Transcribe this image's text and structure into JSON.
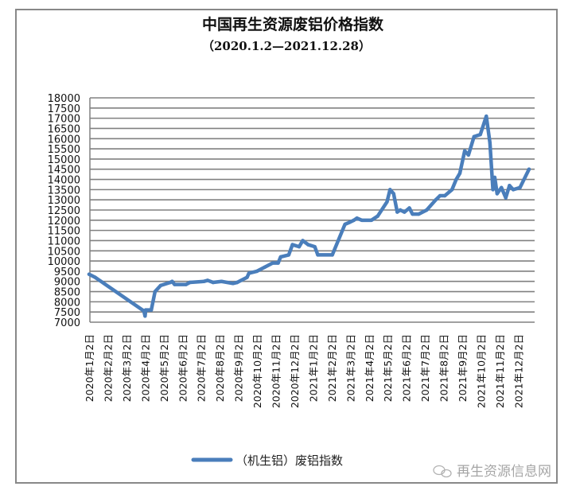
{
  "chart_data": {
    "type": "line",
    "title": "中国再生资源废铝价格指数",
    "subtitle": "（2020.1.2—2021.12.28）",
    "xlabel": "",
    "ylabel": "",
    "ylim": [
      7000,
      18000
    ],
    "y_ticks": [
      7000,
      7500,
      8000,
      8500,
      9000,
      9500,
      10000,
      10500,
      11000,
      11500,
      12000,
      12500,
      13000,
      13500,
      14000,
      14500,
      15000,
      15500,
      16000,
      16500,
      17000,
      17500,
      18000
    ],
    "x_tick_labels": [
      "2020年1月2日",
      "2020年2月2日",
      "2020年3月2日",
      "2020年4月2日",
      "2020年5月2日",
      "2020年6月2日",
      "2020年7月2日",
      "2020年8月2日",
      "2020年9月2日",
      "2020年10月2日",
      "2020年11月2日",
      "2020年12月2日",
      "2021年1月2日",
      "2021年2月2日",
      "2021年3月2日",
      "2021年4月2日",
      "2021年5月2日",
      "2021年6月2日",
      "2021年7月2日",
      "2021年8月2日",
      "2021年9月2日",
      "2021年10月2日",
      "2021年11月2日",
      "2021年12月2日"
    ],
    "grid": true,
    "legend_position": "bottom",
    "series": [
      {
        "name": "（机生铝）废铝指数",
        "color": "#4a7ebb",
        "points": [
          [
            "2020-01-02",
            9350
          ],
          [
            "2020-01-12",
            9200
          ],
          [
            "2020-03-31",
            7550
          ],
          [
            "2020-04-02",
            7300
          ],
          [
            "2020-04-03",
            7600
          ],
          [
            "2020-04-12",
            7600
          ],
          [
            "2020-04-18",
            8500
          ],
          [
            "2020-04-27",
            8800
          ],
          [
            "2020-05-13",
            8950
          ],
          [
            "2020-05-16",
            9000
          ],
          [
            "2020-05-20",
            8850
          ],
          [
            "2020-06-08",
            8850
          ],
          [
            "2020-06-14",
            8950
          ],
          [
            "2020-07-07",
            9000
          ],
          [
            "2020-07-13",
            9050
          ],
          [
            "2020-07-22",
            8950
          ],
          [
            "2020-08-05",
            9000
          ],
          [
            "2020-08-24",
            8900
          ],
          [
            "2020-08-31",
            8950
          ],
          [
            "2020-09-16",
            9200
          ],
          [
            "2020-09-19",
            9400
          ],
          [
            "2020-10-02",
            9500
          ],
          [
            "2020-10-15",
            9700
          ],
          [
            "2020-10-28",
            9900
          ],
          [
            "2020-11-06",
            9900
          ],
          [
            "2020-11-10",
            10200
          ],
          [
            "2020-11-23",
            10300
          ],
          [
            "2020-11-29",
            10800
          ],
          [
            "2020-12-10",
            10700
          ],
          [
            "2020-12-16",
            11000
          ],
          [
            "2020-12-25",
            10800
          ],
          [
            "2021-01-05",
            10700
          ],
          [
            "2021-01-10",
            10300
          ],
          [
            "2021-02-03",
            10300
          ],
          [
            "2021-02-22",
            11800
          ],
          [
            "2021-03-01",
            11900
          ],
          [
            "2021-03-08",
            12000
          ],
          [
            "2021-03-13",
            12100
          ],
          [
            "2021-03-21",
            12000
          ],
          [
            "2021-04-06",
            12000
          ],
          [
            "2021-04-16",
            12200
          ],
          [
            "2021-05-01",
            12900
          ],
          [
            "2021-05-06",
            13500
          ],
          [
            "2021-05-12",
            13300
          ],
          [
            "2021-05-18",
            12400
          ],
          [
            "2021-05-23",
            12500
          ],
          [
            "2021-05-30",
            12400
          ],
          [
            "2021-06-07",
            12600
          ],
          [
            "2021-06-12",
            12300
          ],
          [
            "2021-06-22",
            12300
          ],
          [
            "2021-07-05",
            12500
          ],
          [
            "2021-07-20",
            13000
          ],
          [
            "2021-07-27",
            13200
          ],
          [
            "2021-08-04",
            13200
          ],
          [
            "2021-08-16",
            13500
          ],
          [
            "2021-08-23",
            14000
          ],
          [
            "2021-08-29",
            14300
          ],
          [
            "2021-09-06",
            15400
          ],
          [
            "2021-09-12",
            15200
          ],
          [
            "2021-09-21",
            16100
          ],
          [
            "2021-10-01",
            16200
          ],
          [
            "2021-10-11",
            17100
          ],
          [
            "2021-10-17",
            15800
          ],
          [
            "2021-10-22",
            13500
          ],
          [
            "2021-10-25",
            14100
          ],
          [
            "2021-10-29",
            13300
          ],
          [
            "2021-11-05",
            13600
          ],
          [
            "2021-11-12",
            13100
          ],
          [
            "2021-11-18",
            13700
          ],
          [
            "2021-11-24",
            13500
          ],
          [
            "2021-12-05",
            13600
          ],
          [
            "2021-12-20",
            14500
          ]
        ]
      }
    ]
  },
  "watermark": {
    "icon": "wechat-icon",
    "text": "再生资源信息网"
  }
}
